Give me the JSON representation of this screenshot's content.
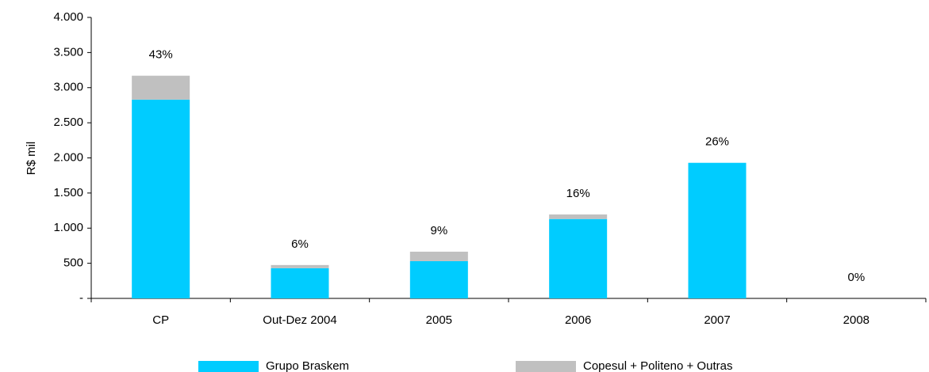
{
  "chart_data": {
    "type": "stacked_bar",
    "y_axis_label": "R$ mil",
    "categories": [
      "CP",
      "Out-Dez 2004",
      "2005",
      "2006",
      "2007",
      "2008"
    ],
    "series": [
      {
        "name": "Grupo Braskem",
        "color": "#00ccff",
        "values": [
          2830,
          430,
          530,
          1130,
          1930,
          0
        ]
      },
      {
        "name": "Copesul + Politeno + Outras",
        "color": "#c0c0c0",
        "values": [
          340,
          45,
          135,
          65,
          0,
          0
        ]
      }
    ],
    "annotations": [
      "43%",
      "6%",
      "9%",
      "16%",
      "26%",
      "0%"
    ],
    "ylim": [
      0,
      4000
    ],
    "yticks": [
      {
        "value": 0,
        "label": "-"
      },
      500,
      {
        "value": 1000,
        "label": "1.000"
      },
      {
        "value": 1500,
        "label": "1.500"
      },
      {
        "value": 2000,
        "label": "2.000"
      },
      {
        "value": 2500,
        "label": "2.500"
      },
      {
        "value": 3000,
        "label": "3.000"
      },
      {
        "value": 3500,
        "label": "3.500"
      },
      {
        "value": 4000,
        "label": "4.000"
      }
    ],
    "grid": false
  }
}
